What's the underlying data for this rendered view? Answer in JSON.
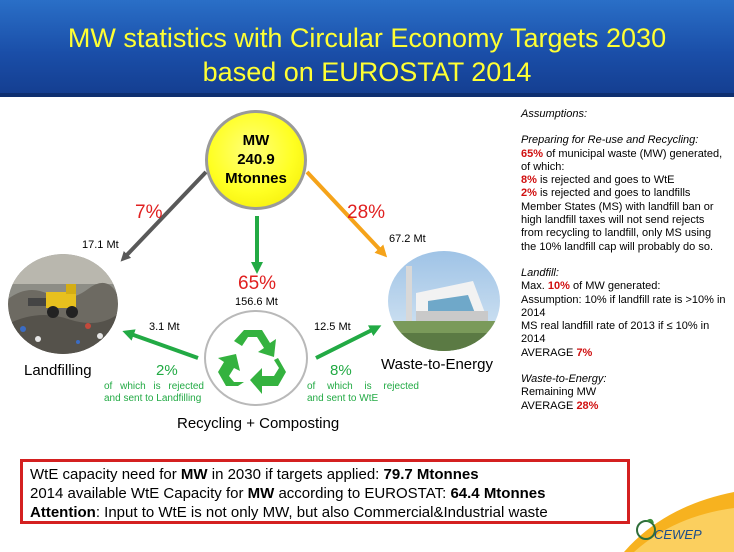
{
  "header": {
    "title_line1": "MW statistics with Circular Economy Targets 2030",
    "title_line2": "based on EUROSTAT 2014"
  },
  "center": {
    "line1": "MW",
    "line2": "240.9",
    "line3": "Mtonnes"
  },
  "flows": {
    "landfill_pct": "7%",
    "landfill_mt": "17.1 Mt",
    "wte_pct": "28%",
    "wte_mt": "67.2 Mt",
    "recycling_pct": "65%",
    "recycling_mt": "156.6 Mt",
    "reject_landfill_mt": "3.1 Mt",
    "reject_wte_mt": "12.5 Mt",
    "reject_landfill_pct": "2%",
    "reject_wte_pct": "8%",
    "reject_landfill_note_1": "of which is rejected",
    "reject_landfill_note_2": "and sent to Landfilling",
    "reject_wte_note_1": "of which is rejected",
    "reject_wte_note_2": "and sent to WtE"
  },
  "labels": {
    "landfilling": "Landfilling",
    "wte": "Waste-to-Energy",
    "recycling": "Recycling + Composting"
  },
  "assumptions": {
    "heading": "Assumptions:",
    "reuse_heading": "Preparing for Re-use and Recycling:",
    "reuse_pct": "65%",
    "reuse_text": " of municipal waste (MW) generated, of which:",
    "wte_pct": "8%",
    "wte_text": " is rejected and goes to WtE",
    "landfill_pct": "2%",
    "landfill_text": " is rejected and goes to landfills Member States (MS) with landfill ban or high landfill taxes will not send rejects from recycling to landfill, only MS using the 10% landfill cap will probably do so.",
    "landfill_heading": "Landfill:",
    "landfill_max_pre": "Max. ",
    "landfill_max_pct": "10%",
    "landfill_max_post": " of MW generated:",
    "landfill_line2": "Assumption: 10% if landfill rate is >10% in 2014",
    "landfill_line3": "MS real landfill rate of 2013 if ≤ 10% in 2014",
    "landfill_avg_pre": "AVERAGE ",
    "landfill_avg_pct": "7%",
    "wte_heading": "Waste-to-Energy:",
    "wte_line1": "Remaining MW",
    "wte_avg_pre": "AVERAGE ",
    "wte_avg_pct": "28%"
  },
  "summary": {
    "l1_pre": "WtE capacity need for ",
    "l1_bold": "MW",
    "l1_mid": " in 2030 if targets applied: ",
    "l1_val": "79.7 Mtonnes",
    "l2_pre": "2014 available WtE Capacity for ",
    "l2_bold": "MW",
    "l2_mid": " according to EUROSTAT: ",
    "l2_val": "64.4 Mtonnes",
    "l3_bold": "Attention",
    "l3_text": ": Input to WtE is not only MW, but also Commercial&Industrial waste"
  },
  "logo": {
    "text": "CEWEP"
  },
  "colors": {
    "title": "#ffff33",
    "header_blue": "#1a4ea8",
    "red": "#e02020",
    "green": "#22aa44",
    "orange": "#f5a31a",
    "gray_arrow": "#595959"
  }
}
